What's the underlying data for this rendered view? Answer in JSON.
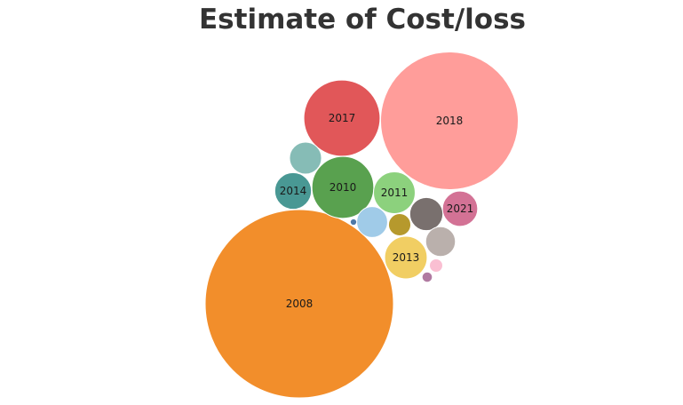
{
  "chart_data": {
    "type": "bubble",
    "title": "Estimate of Cost/loss",
    "bubbles": [
      {
        "label": "2008",
        "value": 100.0,
        "color": "#F28E2B",
        "show_label": true
      },
      {
        "label": "2018",
        "value": 53.5,
        "color": "#FF9D9A",
        "show_label": true
      },
      {
        "label": "2017",
        "value": 16.4,
        "color": "#E15759",
        "show_label": true
      },
      {
        "label": "2010",
        "value": 10.8,
        "color": "#59A14F",
        "show_label": true
      },
      {
        "label": "2011",
        "value": 4.9,
        "color": "#8CD17D",
        "show_label": true
      },
      {
        "label": "2013",
        "value": 5.1,
        "color": "#F1CE63",
        "show_label": true
      },
      {
        "label": "2014",
        "value": 3.8,
        "color": "#499894",
        "show_label": true
      },
      {
        "label": "2021",
        "value": 3.5,
        "color": "#D37295",
        "show_label": true
      },
      {
        "label": "",
        "value": 2.9,
        "color": "#86BCB6",
        "show_label": false
      },
      {
        "label": "",
        "value": 3.1,
        "color": "#79706E",
        "show_label": false
      },
      {
        "label": "",
        "value": 2.7,
        "color": "#A0CBE8",
        "show_label": false
      },
      {
        "label": "",
        "value": 2.5,
        "color": "#BAB0AC",
        "show_label": false
      },
      {
        "label": "",
        "value": 1.4,
        "color": "#B6992D",
        "show_label": false
      },
      {
        "label": "",
        "value": 0.5,
        "color": "#FABFD2",
        "show_label": false
      },
      {
        "label": "",
        "value": 0.3,
        "color": "#B07AA1",
        "show_label": false
      },
      {
        "label": "",
        "value": 0.12,
        "color": "#4E79A7",
        "show_label": false
      }
    ]
  }
}
